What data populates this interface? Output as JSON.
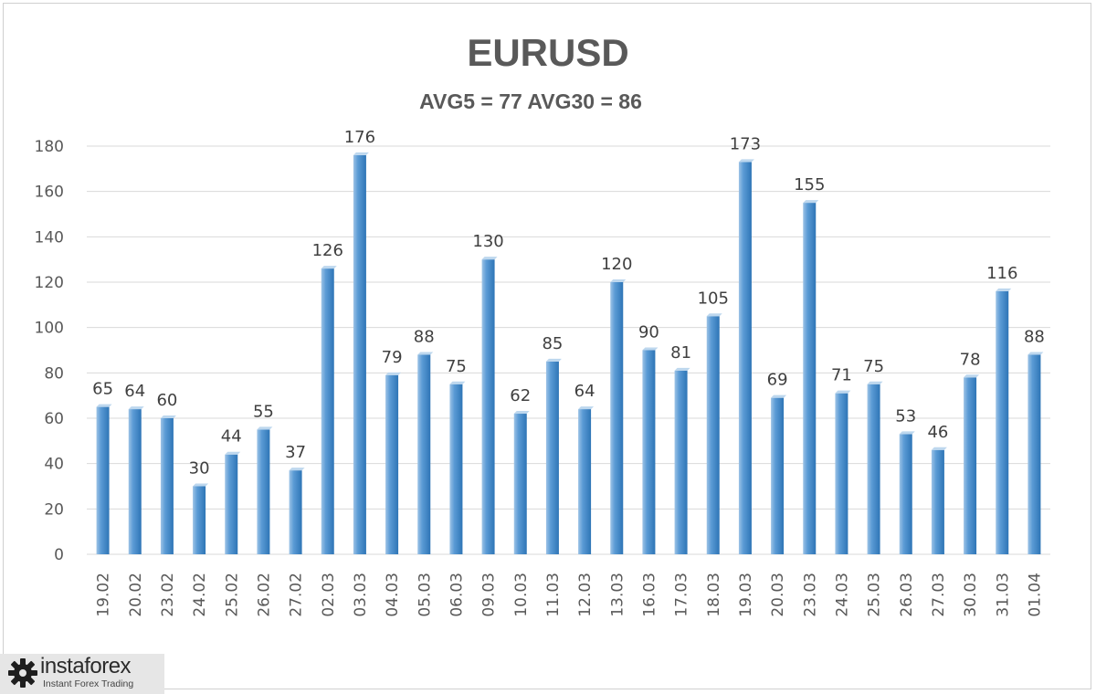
{
  "chart_data": {
    "type": "bar",
    "title": "EURUSD",
    "subtitle": "AVG5 = 77 AVG30 = 86",
    "categories": [
      "19.02",
      "20.02",
      "23.02",
      "24.02",
      "25.02",
      "26.02",
      "27.02",
      "02.03",
      "03.03",
      "04.03",
      "05.03",
      "06.03",
      "09.03",
      "10.03",
      "11.03",
      "12.03",
      "13.03",
      "16.03",
      "17.03",
      "18.03",
      "19.03",
      "20.03",
      "23.03",
      "24.03",
      "25.03",
      "26.03",
      "27.03",
      "30.03",
      "31.03",
      "01.04"
    ],
    "values": [
      65,
      64,
      60,
      30,
      44,
      55,
      37,
      126,
      176,
      79,
      88,
      75,
      130,
      62,
      85,
      64,
      120,
      90,
      81,
      105,
      173,
      69,
      155,
      71,
      75,
      53,
      46,
      78,
      116,
      88
    ],
    "ylim": [
      0,
      180
    ],
    "yticks": [
      0,
      20,
      40,
      60,
      80,
      100,
      120,
      140,
      160,
      180
    ],
    "xlabel": "",
    "ylabel": "",
    "grid": true,
    "legend": "none",
    "colors": {
      "bar": "#5b9bd5",
      "bar_light": "#9dc3e6",
      "bar_dark": "#2e75b6",
      "grid": "#d9d9d9",
      "text": "#595959"
    }
  },
  "logo": {
    "name": "instaforex",
    "tagline": "Instant Forex Trading",
    "icon": "gear-icon"
  }
}
